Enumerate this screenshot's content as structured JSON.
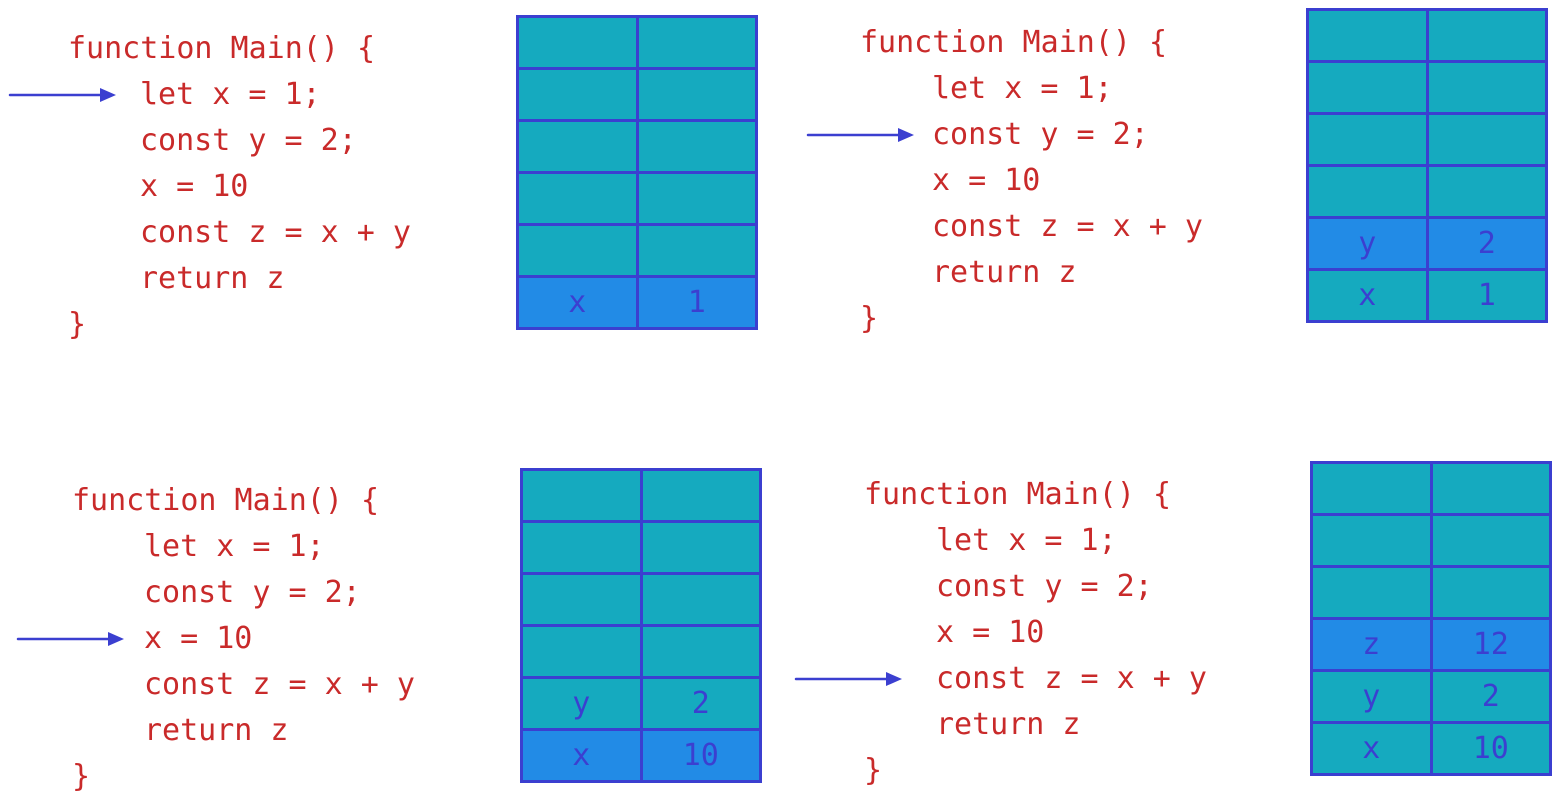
{
  "colors": {
    "code_text": "#c92a2a",
    "arrow": "#3b3fd0",
    "stack_fill": "#15aabf",
    "stack_highlight": "#228be6",
    "stack_border": "#3b3fd0"
  },
  "code_lines": [
    "function Main() {",
    "let x = 1;",
    "const y = 2;",
    "x = 10",
    "const z = x + y",
    "return z",
    "}"
  ],
  "panels": [
    {
      "arrow_line": 1,
      "stack_rows": [
        {
          "name": "",
          "value": "",
          "highlight": false
        },
        {
          "name": "",
          "value": "",
          "highlight": false
        },
        {
          "name": "",
          "value": "",
          "highlight": false
        },
        {
          "name": "",
          "value": "",
          "highlight": false
        },
        {
          "name": "",
          "value": "",
          "highlight": false
        },
        {
          "name": "x",
          "value": "1",
          "highlight": true
        }
      ]
    },
    {
      "arrow_line": 2,
      "stack_rows": [
        {
          "name": "",
          "value": "",
          "highlight": false
        },
        {
          "name": "",
          "value": "",
          "highlight": false
        },
        {
          "name": "",
          "value": "",
          "highlight": false
        },
        {
          "name": "",
          "value": "",
          "highlight": false
        },
        {
          "name": "y",
          "value": "2",
          "highlight": true
        },
        {
          "name": "x",
          "value": "1",
          "highlight": false
        }
      ]
    },
    {
      "arrow_line": 3,
      "stack_rows": [
        {
          "name": "",
          "value": "",
          "highlight": false
        },
        {
          "name": "",
          "value": "",
          "highlight": false
        },
        {
          "name": "",
          "value": "",
          "highlight": false
        },
        {
          "name": "",
          "value": "",
          "highlight": false
        },
        {
          "name": "y",
          "value": "2",
          "highlight": false
        },
        {
          "name": "x",
          "value": "10",
          "highlight": true
        }
      ]
    },
    {
      "arrow_line": 4,
      "stack_rows": [
        {
          "name": "",
          "value": "",
          "highlight": false
        },
        {
          "name": "",
          "value": "",
          "highlight": false
        },
        {
          "name": "",
          "value": "",
          "highlight": false
        },
        {
          "name": "z",
          "value": "12",
          "highlight": true
        },
        {
          "name": "y",
          "value": "2",
          "highlight": false
        },
        {
          "name": "x",
          "value": "10",
          "highlight": false
        }
      ]
    }
  ]
}
